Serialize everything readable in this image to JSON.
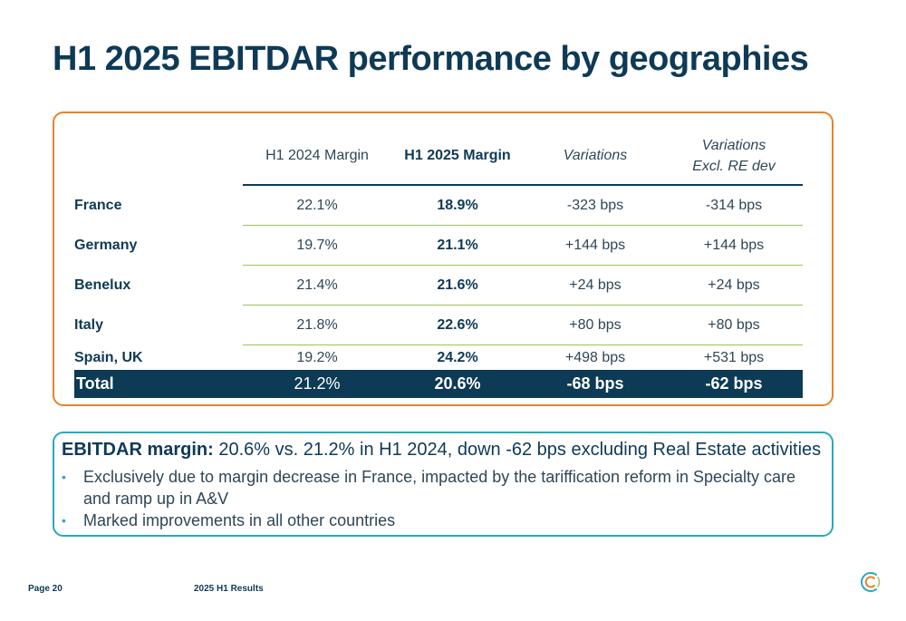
{
  "title": "H1 2025 EBITDAR performance by geographies",
  "table": {
    "headers": [
      "H1 2024 Margin",
      "H1 2025 Margin",
      "Variations",
      "Variations",
      "Excl. RE dev"
    ],
    "rows": [
      {
        "country": "France",
        "h1_2024": "22.1%",
        "h1_2025": "18.9%",
        "variation": "-323 bps",
        "variation_excl": "-314 bps"
      },
      {
        "country": "Germany",
        "h1_2024": "19.7%",
        "h1_2025": "21.1%",
        "variation": "+144 bps",
        "variation_excl": "+144 bps"
      },
      {
        "country": "Benelux",
        "h1_2024": "21.4%",
        "h1_2025": "21.6%",
        "variation": "+24 bps",
        "variation_excl": "+24 bps"
      },
      {
        "country": "Italy",
        "h1_2024": "21.8%",
        "h1_2025": "22.6%",
        "variation": "+80 bps",
        "variation_excl": "+80 bps"
      },
      {
        "country": "Spain, UK",
        "h1_2024": "19.2%",
        "h1_2025": "24.2%",
        "variation": "+498 bps",
        "variation_excl": "+531 bps"
      }
    ],
    "total": {
      "country": "Total",
      "h1_2024": "21.2%",
      "h1_2025": "20.6%",
      "variation": "-68 bps",
      "variation_excl": "-62 bps"
    }
  },
  "summary": {
    "heading_bold": "EBITDAR margin:",
    "heading_rest": " 20.6% vs. 21.2% in H1 2024, down -62 bps excluding Real Estate activities",
    "bullets": [
      "Exclusively due to margin decrease in France, impacted by the tariffication reform in Specialty care and ramp up in A&V",
      "Marked improvements in all other countries"
    ]
  },
  "footer": {
    "page": "Page 20",
    "label": "2025 H1 Results"
  },
  "colors": {
    "title": "#0e3a56",
    "table_border": "#e5832b",
    "info_border": "#27a9bf",
    "total_bg": "#0d3a55",
    "row_separator": "#9cc25e"
  }
}
